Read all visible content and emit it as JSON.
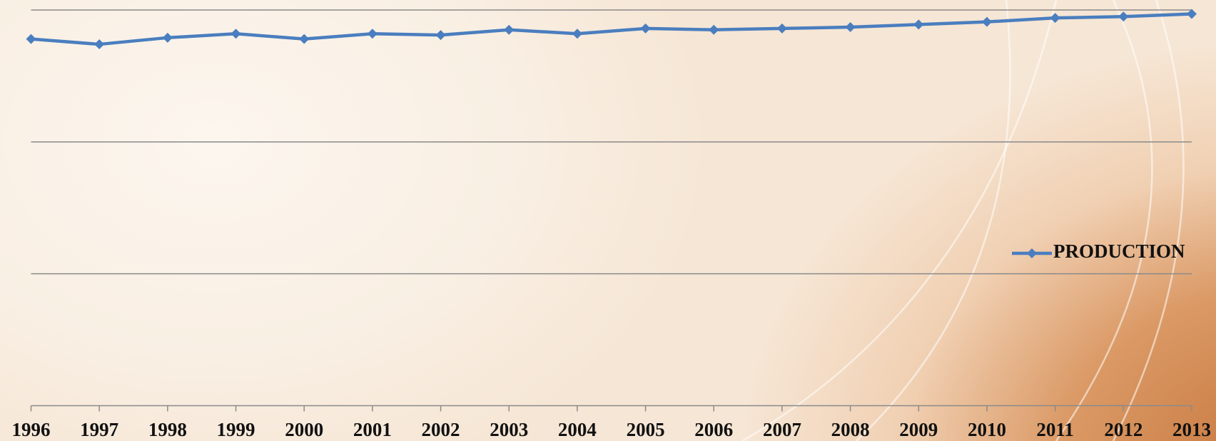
{
  "chart_data": {
    "type": "line",
    "categories": [
      "1996",
      "1997",
      "1998",
      "1999",
      "2000",
      "2001",
      "2002",
      "2003",
      "2004",
      "2005",
      "2006",
      "2007",
      "2008",
      "2009",
      "2010",
      "2011",
      "2012",
      "2013"
    ],
    "series": [
      {
        "name": "PRODUCTION",
        "color": "#4a7ebf",
        "values": [
          2.78,
          2.74,
          2.79,
          2.82,
          2.78,
          2.82,
          2.81,
          2.85,
          2.82,
          2.86,
          2.85,
          2.86,
          2.87,
          2.89,
          2.91,
          2.94,
          2.95,
          2.97
        ]
      }
    ],
    "ylim": [
      0,
      3
    ],
    "yticks": [
      0,
      1,
      2,
      3
    ],
    "grid": true,
    "legend": "right"
  }
}
